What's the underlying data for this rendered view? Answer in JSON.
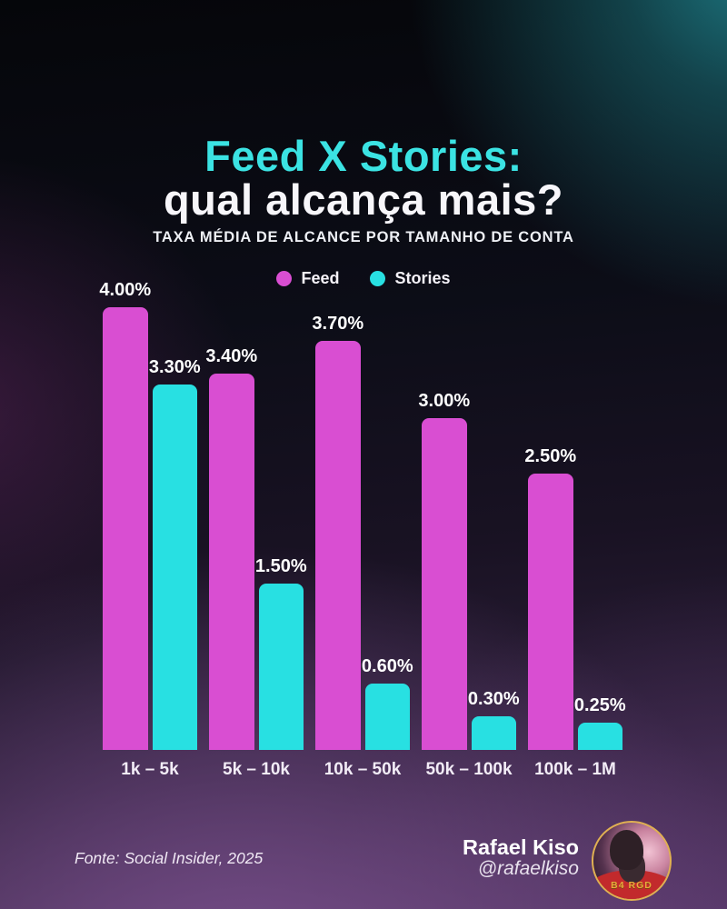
{
  "header": {
    "title_line1": "Feed X Stories:",
    "title_line2": "qual alcança mais?",
    "subtitle": "TAXA MÉDIA DE ALCANCE POR TAMANHO DE CONTA"
  },
  "legend": [
    {
      "label": "Feed",
      "color": "#d94ed2"
    },
    {
      "label": "Stories",
      "color": "#28e0e2"
    }
  ],
  "chart_data": {
    "type": "bar",
    "title": "Feed X Stories: qual alcança mais?",
    "subtitle": "TAXA MÉDIA DE ALCANCE POR TAMANHO DE CONTA",
    "categories": [
      "1k – 5k",
      "5k – 10k",
      "10k – 50k",
      "50k – 100k",
      "100k – 1M"
    ],
    "series": [
      {
        "name": "Feed",
        "color": "#d94ed2",
        "values": [
          4.0,
          3.4,
          3.7,
          3.0,
          2.5
        ],
        "labels": [
          "4.00%",
          "3.40%",
          "3.70%",
          "3.00%",
          "2.50%"
        ]
      },
      {
        "name": "Stories",
        "color": "#28e0e2",
        "values": [
          3.3,
          1.5,
          0.6,
          0.3,
          0.25
        ],
        "labels": [
          "3.30%",
          "1.50%",
          "0.60%",
          "0.30%",
          "0.25%"
        ]
      }
    ],
    "xlabel": "",
    "ylabel": "",
    "ylim": [
      0,
      4.0
    ],
    "value_suffix": "%",
    "grid": false,
    "legend_position": "top"
  },
  "footer": {
    "source": "Fonte: Social Insider, 2025",
    "author_name": "Rafael Kiso",
    "author_handle": "@rafaelkiso",
    "avatar_badge": "B4 RGD"
  },
  "colors": {
    "title_accent": "#3be3e3",
    "feed_bar": "#d94ed2",
    "stories_bar": "#28e0e2",
    "bg_teal_glow": "#1e7d87",
    "bg_purple_glow": "#7a508e"
  }
}
